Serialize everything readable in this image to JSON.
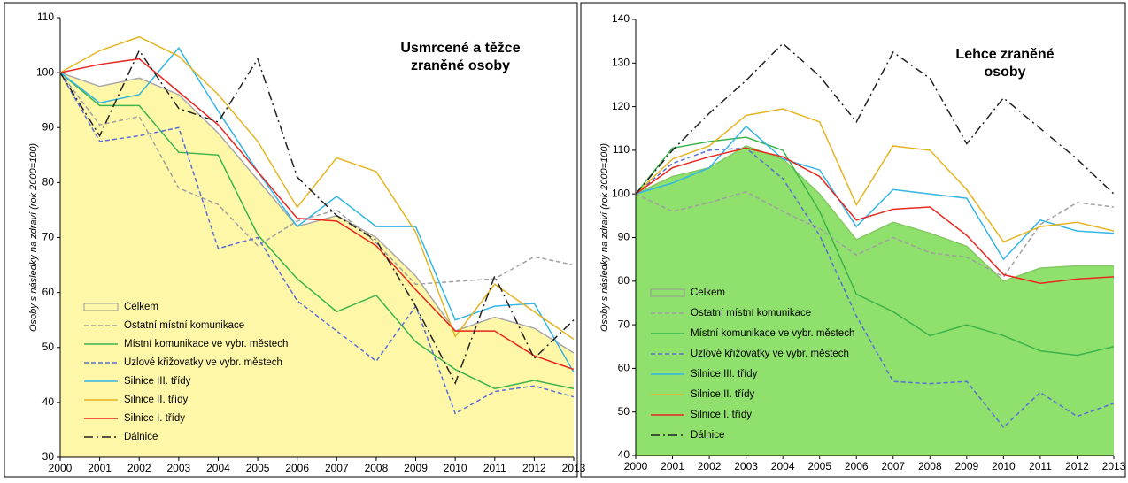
{
  "chart_data": [
    {
      "type": "line",
      "title_lines": [
        "Usmrcené a těžce",
        "zraněné osoby"
      ],
      "y_label": "Osoby s následky na zdraví (rok 2000=100)",
      "categories": [
        "2000",
        "2001",
        "2002",
        "2003",
        "2004",
        "2005",
        "2006",
        "2007",
        "2008",
        "2009",
        "2010",
        "2011",
        "2012",
        "2013"
      ],
      "ylim": [
        30,
        110
      ],
      "yticks": [
        30,
        40,
        50,
        60,
        70,
        80,
        90,
        100,
        110
      ],
      "series": [
        {
          "name": "Celkem",
          "style": "area",
          "color": "#fff7a8",
          "values": [
            100,
            97.5,
            99,
            96,
            89,
            80.5,
            72,
            74,
            70,
            63,
            53,
            55.5,
            53.5,
            49
          ]
        },
        {
          "name": "Ostatní místní komunikace",
          "style": "dashed",
          "color": "#a0a0a0",
          "values": [
            100,
            90.5,
            92,
            79,
            76,
            68.5,
            73,
            75,
            69,
            61.5,
            62,
            62.5,
            66.5,
            65
          ]
        },
        {
          "name": "Místní komunikace ve vybr. městech",
          "style": "solid",
          "color": "#3cb44b",
          "values": [
            100,
            94,
            94,
            85.5,
            85,
            70.5,
            62.5,
            56.5,
            59.5,
            51,
            46,
            42.5,
            44,
            42.5
          ]
        },
        {
          "name": "Uzlové křižovatky ve vybr. městech",
          "style": "dashed",
          "color": "#5a6fd6",
          "values": [
            100,
            87.5,
            88.5,
            90,
            68,
            70,
            58.5,
            53,
            47.5,
            57.5,
            38,
            42,
            43,
            41
          ]
        },
        {
          "name": "Silnice III. třídy",
          "style": "solid",
          "color": "#33b5e5",
          "values": [
            100,
            94.5,
            96,
            104.5,
            93,
            82,
            72,
            77.5,
            72,
            72,
            55,
            57.5,
            58,
            45.5
          ]
        },
        {
          "name": "Silnice II. třídy",
          "style": "solid",
          "color": "#e6b422",
          "values": [
            100,
            104,
            106.5,
            103,
            96,
            87.5,
            75.5,
            84.5,
            82,
            71,
            52,
            61.5,
            56.5,
            51.5
          ]
        },
        {
          "name": "Silnice I. třídy",
          "style": "solid",
          "color": "#e8271f",
          "values": [
            100,
            101.5,
            102.5,
            96.5,
            90.5,
            82,
            73.5,
            73,
            68.5,
            60.5,
            53,
            53,
            48.5,
            46
          ]
        },
        {
          "name": "Dálnice",
          "style": "dashdot",
          "color": "#222222",
          "values": [
            100,
            88.5,
            104,
            93.5,
            91,
            102.5,
            81,
            74,
            69.5,
            57.5,
            43.5,
            63,
            48,
            55
          ]
        }
      ]
    },
    {
      "type": "line",
      "title_lines": [
        "Lehce zraněné",
        "osoby"
      ],
      "y_label": "Osoby s následky na zdraví (rok 2000=100)",
      "categories": [
        "2000",
        "2001",
        "2002",
        "2003",
        "2004",
        "2005",
        "2006",
        "2007",
        "2008",
        "2009",
        "2010",
        "2011",
        "2012",
        "2013"
      ],
      "ylim": [
        40,
        140
      ],
      "yticks": [
        40,
        50,
        60,
        70,
        80,
        90,
        100,
        110,
        120,
        130,
        140
      ],
      "series": [
        {
          "name": "Celkem",
          "style": "area",
          "color": "#8fe06c",
          "values": [
            100,
            104,
            106,
            111,
            108,
            100,
            89.5,
            93.5,
            91,
            88,
            80,
            83,
            83.5,
            83.5
          ]
        },
        {
          "name": "Ostatní místní komunikace",
          "style": "dashed",
          "color": "#a0a0a0",
          "values": [
            100,
            96,
            98,
            100.5,
            96,
            92,
            86,
            90,
            86.5,
            85.5,
            81,
            93,
            98,
            97
          ]
        },
        {
          "name": "Místní komunikace ve vybr. městech",
          "style": "solid",
          "color": "#3cb44b",
          "values": [
            100,
            110.5,
            112,
            113,
            110,
            96,
            77,
            73,
            67.5,
            70,
            67.5,
            64,
            63,
            65
          ]
        },
        {
          "name": "Uzlové křižovatky ve vybr. městech",
          "style": "dashed",
          "color": "#5a6fd6",
          "values": [
            100,
            107,
            110,
            110.5,
            103.5,
            90.5,
            72,
            57,
            56.5,
            57,
            46.5,
            54.5,
            49,
            52
          ]
        },
        {
          "name": "Silnice III. třídy",
          "style": "solid",
          "color": "#33b5e5",
          "values": [
            100,
            102.5,
            106,
            115.5,
            108,
            105.5,
            92.5,
            101,
            100,
            99,
            85,
            94,
            91.5,
            91
          ]
        },
        {
          "name": "Silnice II. třídy",
          "style": "solid",
          "color": "#e6b422",
          "values": [
            100,
            108,
            111,
            118,
            119.5,
            116.5,
            97.5,
            111,
            110,
            101,
            89,
            92.5,
            93.5,
            91.5
          ]
        },
        {
          "name": "Silnice I. třídy",
          "style": "solid",
          "color": "#e8271f",
          "values": [
            100,
            106,
            108.5,
            110.5,
            108.5,
            104,
            94,
            96.5,
            97,
            90.5,
            81.5,
            79.5,
            80.5,
            81
          ]
        },
        {
          "name": "Dálnice",
          "style": "dashdot",
          "color": "#222222",
          "values": [
            100,
            110,
            118.5,
            126,
            134.5,
            127,
            116.5,
            132.5,
            126.5,
            111.5,
            122,
            115,
            108,
            100
          ]
        }
      ]
    }
  ]
}
